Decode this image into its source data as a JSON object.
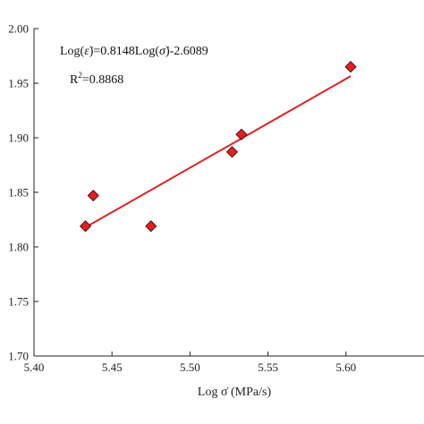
{
  "chart_data": {
    "type": "scatter",
    "title": "",
    "xlabel": "Log σ̇ (MPa/s)",
    "ylabel": "",
    "xlim": [
      5.4,
      5.65
    ],
    "ylim": [
      1.7,
      2.0
    ],
    "x_ticks": [
      "5.40",
      "5.45",
      "5.50",
      "5.55",
      "5.60"
    ],
    "y_ticks": [
      "1.70",
      "1.75",
      "1.80",
      "1.85",
      "1.90",
      "1.95",
      "2.00"
    ],
    "grid": false,
    "series": [
      {
        "marker": "diamond",
        "color": "#e02020",
        "points": [
          {
            "x": 5.433,
            "y": 1.819
          },
          {
            "x": 5.438,
            "y": 1.847
          },
          {
            "x": 5.475,
            "y": 1.819
          },
          {
            "x": 5.527,
            "y": 1.887
          },
          {
            "x": 5.533,
            "y": 1.903
          },
          {
            "x": 5.603,
            "y": 1.965
          }
        ]
      }
    ],
    "fit": {
      "color": "#e02020",
      "slope": 0.8148,
      "intercept": -2.6089,
      "x_range": [
        5.433,
        5.603
      ]
    },
    "annotations": {
      "equation_prefix": "Log(",
      "equation_mid": ")=0.8148Log(",
      "equation_suffix": ")-2.6089",
      "epsilon_dot": "ε̇",
      "sigma_dot": "σ̇",
      "r2_label": "R",
      "r2_exp": "2",
      "r2_value": "=0.8868"
    }
  }
}
